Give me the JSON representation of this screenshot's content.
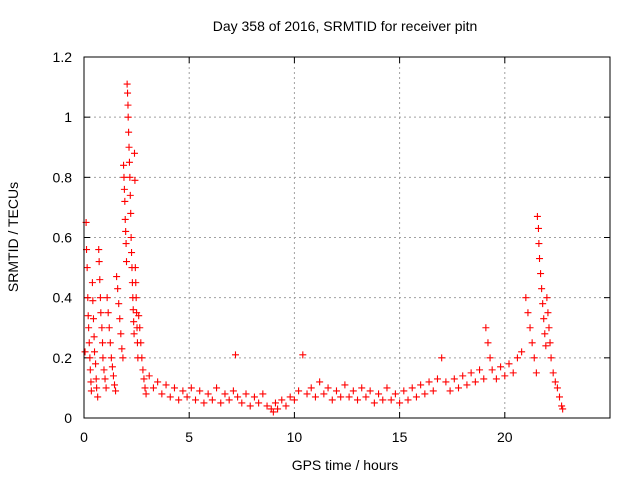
{
  "chart_data": {
    "type": "scatter",
    "title": "Day 358 of 2016, SRMTID for receiver pitn",
    "xlabel": "GPS time / hours",
    "ylabel": "SRMTID / TECUs",
    "xlim": [
      0,
      25
    ],
    "ylim": [
      0,
      1.2
    ],
    "xticks": [
      0,
      5,
      10,
      15,
      20
    ],
    "xtick_labels": [
      "0",
      "5",
      "10",
      "15",
      "20"
    ],
    "yticks": [
      0,
      0.2,
      0.4,
      0.6,
      0.8,
      1.0,
      1.2
    ],
    "ytick_labels": [
      "0",
      "0.2",
      "0.4",
      "0.6",
      "0.8",
      "1",
      "1.2"
    ],
    "grid": true,
    "marker": "plus",
    "marker_color": "#ff0000",
    "series": [
      {
        "name": "SRMTID",
        "points": [
          [
            0.05,
            0.22
          ],
          [
            0.1,
            0.65
          ],
          [
            0.12,
            0.56
          ],
          [
            0.15,
            0.5
          ],
          [
            0.18,
            0.4
          ],
          [
            0.2,
            0.34
          ],
          [
            0.22,
            0.3
          ],
          [
            0.25,
            0.25
          ],
          [
            0.28,
            0.2
          ],
          [
            0.3,
            0.16
          ],
          [
            0.33,
            0.12
          ],
          [
            0.35,
            0.09
          ],
          [
            0.4,
            0.45
          ],
          [
            0.42,
            0.39
          ],
          [
            0.45,
            0.33
          ],
          [
            0.48,
            0.27
          ],
          [
            0.5,
            0.22
          ],
          [
            0.55,
            0.18
          ],
          [
            0.58,
            0.13
          ],
          [
            0.6,
            0.1
          ],
          [
            0.65,
            0.07
          ],
          [
            0.7,
            0.56
          ],
          [
            0.72,
            0.52
          ],
          [
            0.75,
            0.46
          ],
          [
            0.78,
            0.4
          ],
          [
            0.8,
            0.35
          ],
          [
            0.85,
            0.3
          ],
          [
            0.88,
            0.25
          ],
          [
            0.9,
            0.2
          ],
          [
            0.95,
            0.16
          ],
          [
            1.0,
            0.13
          ],
          [
            1.05,
            0.1
          ],
          [
            1.1,
            0.4
          ],
          [
            1.15,
            0.35
          ],
          [
            1.2,
            0.3
          ],
          [
            1.25,
            0.25
          ],
          [
            1.3,
            0.2
          ],
          [
            1.35,
            0.17
          ],
          [
            1.4,
            0.14
          ],
          [
            1.45,
            0.11
          ],
          [
            1.5,
            0.09
          ],
          [
            1.55,
            0.47
          ],
          [
            1.6,
            0.43
          ],
          [
            1.65,
            0.38
          ],
          [
            1.7,
            0.33
          ],
          [
            1.75,
            0.28
          ],
          [
            1.8,
            0.23
          ],
          [
            1.85,
            0.2
          ],
          [
            1.88,
            0.84
          ],
          [
            1.9,
            0.8
          ],
          [
            1.92,
            0.76
          ],
          [
            1.94,
            0.72
          ],
          [
            1.96,
            0.66
          ],
          [
            1.98,
            0.62
          ],
          [
            2.0,
            0.58
          ],
          [
            2.02,
            0.52
          ],
          [
            2.05,
            1.11
          ],
          [
            2.07,
            1.08
          ],
          [
            2.09,
            1.04
          ],
          [
            2.1,
            1.0
          ],
          [
            2.12,
            0.95
          ],
          [
            2.14,
            0.9
          ],
          [
            2.16,
            0.85
          ],
          [
            2.18,
            0.8
          ],
          [
            2.2,
            0.74
          ],
          [
            2.22,
            0.68
          ],
          [
            2.24,
            0.6
          ],
          [
            2.26,
            0.55
          ],
          [
            2.28,
            0.5
          ],
          [
            2.3,
            0.45
          ],
          [
            2.32,
            0.4
          ],
          [
            2.34,
            0.36
          ],
          [
            2.36,
            0.32
          ],
          [
            2.38,
            0.28
          ],
          [
            2.4,
            0.88
          ],
          [
            2.42,
            0.79
          ],
          [
            2.44,
            0.5
          ],
          [
            2.46,
            0.45
          ],
          [
            2.48,
            0.4
          ],
          [
            2.5,
            0.35
          ],
          [
            2.52,
            0.3
          ],
          [
            2.54,
            0.25
          ],
          [
            2.56,
            0.2
          ],
          [
            2.6,
            0.34
          ],
          [
            2.65,
            0.3
          ],
          [
            2.7,
            0.25
          ],
          [
            2.75,
            0.2
          ],
          [
            2.8,
            0.16
          ],
          [
            2.85,
            0.13
          ],
          [
            2.9,
            0.1
          ],
          [
            2.95,
            0.08
          ],
          [
            3.1,
            0.14
          ],
          [
            3.3,
            0.1
          ],
          [
            3.5,
            0.12
          ],
          [
            3.7,
            0.08
          ],
          [
            3.9,
            0.11
          ],
          [
            4.1,
            0.07
          ],
          [
            4.3,
            0.1
          ],
          [
            4.5,
            0.06
          ],
          [
            4.7,
            0.09
          ],
          [
            4.9,
            0.07
          ],
          [
            5.1,
            0.1
          ],
          [
            5.3,
            0.06
          ],
          [
            5.5,
            0.09
          ],
          [
            5.7,
            0.05
          ],
          [
            5.9,
            0.08
          ],
          [
            6.1,
            0.06
          ],
          [
            6.3,
            0.1
          ],
          [
            6.5,
            0.05
          ],
          [
            6.7,
            0.08
          ],
          [
            6.9,
            0.06
          ],
          [
            7.1,
            0.09
          ],
          [
            7.2,
            0.21
          ],
          [
            7.3,
            0.07
          ],
          [
            7.5,
            0.05
          ],
          [
            7.7,
            0.08
          ],
          [
            7.9,
            0.04
          ],
          [
            8.1,
            0.07
          ],
          [
            8.3,
            0.05
          ],
          [
            8.5,
            0.08
          ],
          [
            8.7,
            0.04
          ],
          [
            8.9,
            0.03
          ],
          [
            9.0,
            0.02
          ],
          [
            9.1,
            0.05
          ],
          [
            9.2,
            0.03
          ],
          [
            9.4,
            0.06
          ],
          [
            9.6,
            0.04
          ],
          [
            9.8,
            0.07
          ],
          [
            10.0,
            0.06
          ],
          [
            10.2,
            0.09
          ],
          [
            10.4,
            0.21
          ],
          [
            10.6,
            0.08
          ],
          [
            10.8,
            0.1
          ],
          [
            11.0,
            0.07
          ],
          [
            11.2,
            0.12
          ],
          [
            11.4,
            0.08
          ],
          [
            11.6,
            0.1
          ],
          [
            11.8,
            0.06
          ],
          [
            12.0,
            0.09
          ],
          [
            12.2,
            0.07
          ],
          [
            12.4,
            0.11
          ],
          [
            12.6,
            0.07
          ],
          [
            12.8,
            0.09
          ],
          [
            13.0,
            0.06
          ],
          [
            13.2,
            0.1
          ],
          [
            13.4,
            0.07
          ],
          [
            13.6,
            0.09
          ],
          [
            13.8,
            0.05
          ],
          [
            14.0,
            0.08
          ],
          [
            14.2,
            0.06
          ],
          [
            14.4,
            0.1
          ],
          [
            14.6,
            0.06
          ],
          [
            14.8,
            0.08
          ],
          [
            15.0,
            0.05
          ],
          [
            15.2,
            0.09
          ],
          [
            15.4,
            0.06
          ],
          [
            15.6,
            0.1
          ],
          [
            15.8,
            0.07
          ],
          [
            16.0,
            0.11
          ],
          [
            16.2,
            0.08
          ],
          [
            16.4,
            0.12
          ],
          [
            16.6,
            0.09
          ],
          [
            16.8,
            0.13
          ],
          [
            17.0,
            0.2
          ],
          [
            17.2,
            0.12
          ],
          [
            17.4,
            0.09
          ],
          [
            17.6,
            0.13
          ],
          [
            17.8,
            0.1
          ],
          [
            18.0,
            0.14
          ],
          [
            18.2,
            0.11
          ],
          [
            18.4,
            0.15
          ],
          [
            18.6,
            0.12
          ],
          [
            18.8,
            0.16
          ],
          [
            19.0,
            0.13
          ],
          [
            19.1,
            0.3
          ],
          [
            19.2,
            0.25
          ],
          [
            19.3,
            0.2
          ],
          [
            19.4,
            0.16
          ],
          [
            19.6,
            0.13
          ],
          [
            19.8,
            0.17
          ],
          [
            20.0,
            0.14
          ],
          [
            20.2,
            0.18
          ],
          [
            20.4,
            0.15
          ],
          [
            20.6,
            0.2
          ],
          [
            20.8,
            0.22
          ],
          [
            21.0,
            0.4
          ],
          [
            21.1,
            0.35
          ],
          [
            21.2,
            0.3
          ],
          [
            21.3,
            0.25
          ],
          [
            21.4,
            0.2
          ],
          [
            21.5,
            0.15
          ],
          [
            21.55,
            0.67
          ],
          [
            21.6,
            0.63
          ],
          [
            21.62,
            0.58
          ],
          [
            21.65,
            0.53
          ],
          [
            21.7,
            0.48
          ],
          [
            21.75,
            0.43
          ],
          [
            21.8,
            0.38
          ],
          [
            21.85,
            0.33
          ],
          [
            21.9,
            0.28
          ],
          [
            21.95,
            0.24
          ],
          [
            22.0,
            0.4
          ],
          [
            22.05,
            0.35
          ],
          [
            22.1,
            0.3
          ],
          [
            22.15,
            0.25
          ],
          [
            22.2,
            0.2
          ],
          [
            22.3,
            0.15
          ],
          [
            22.4,
            0.12
          ],
          [
            22.5,
            0.1
          ],
          [
            22.6,
            0.07
          ],
          [
            22.7,
            0.04
          ],
          [
            22.75,
            0.03
          ]
        ]
      }
    ]
  }
}
